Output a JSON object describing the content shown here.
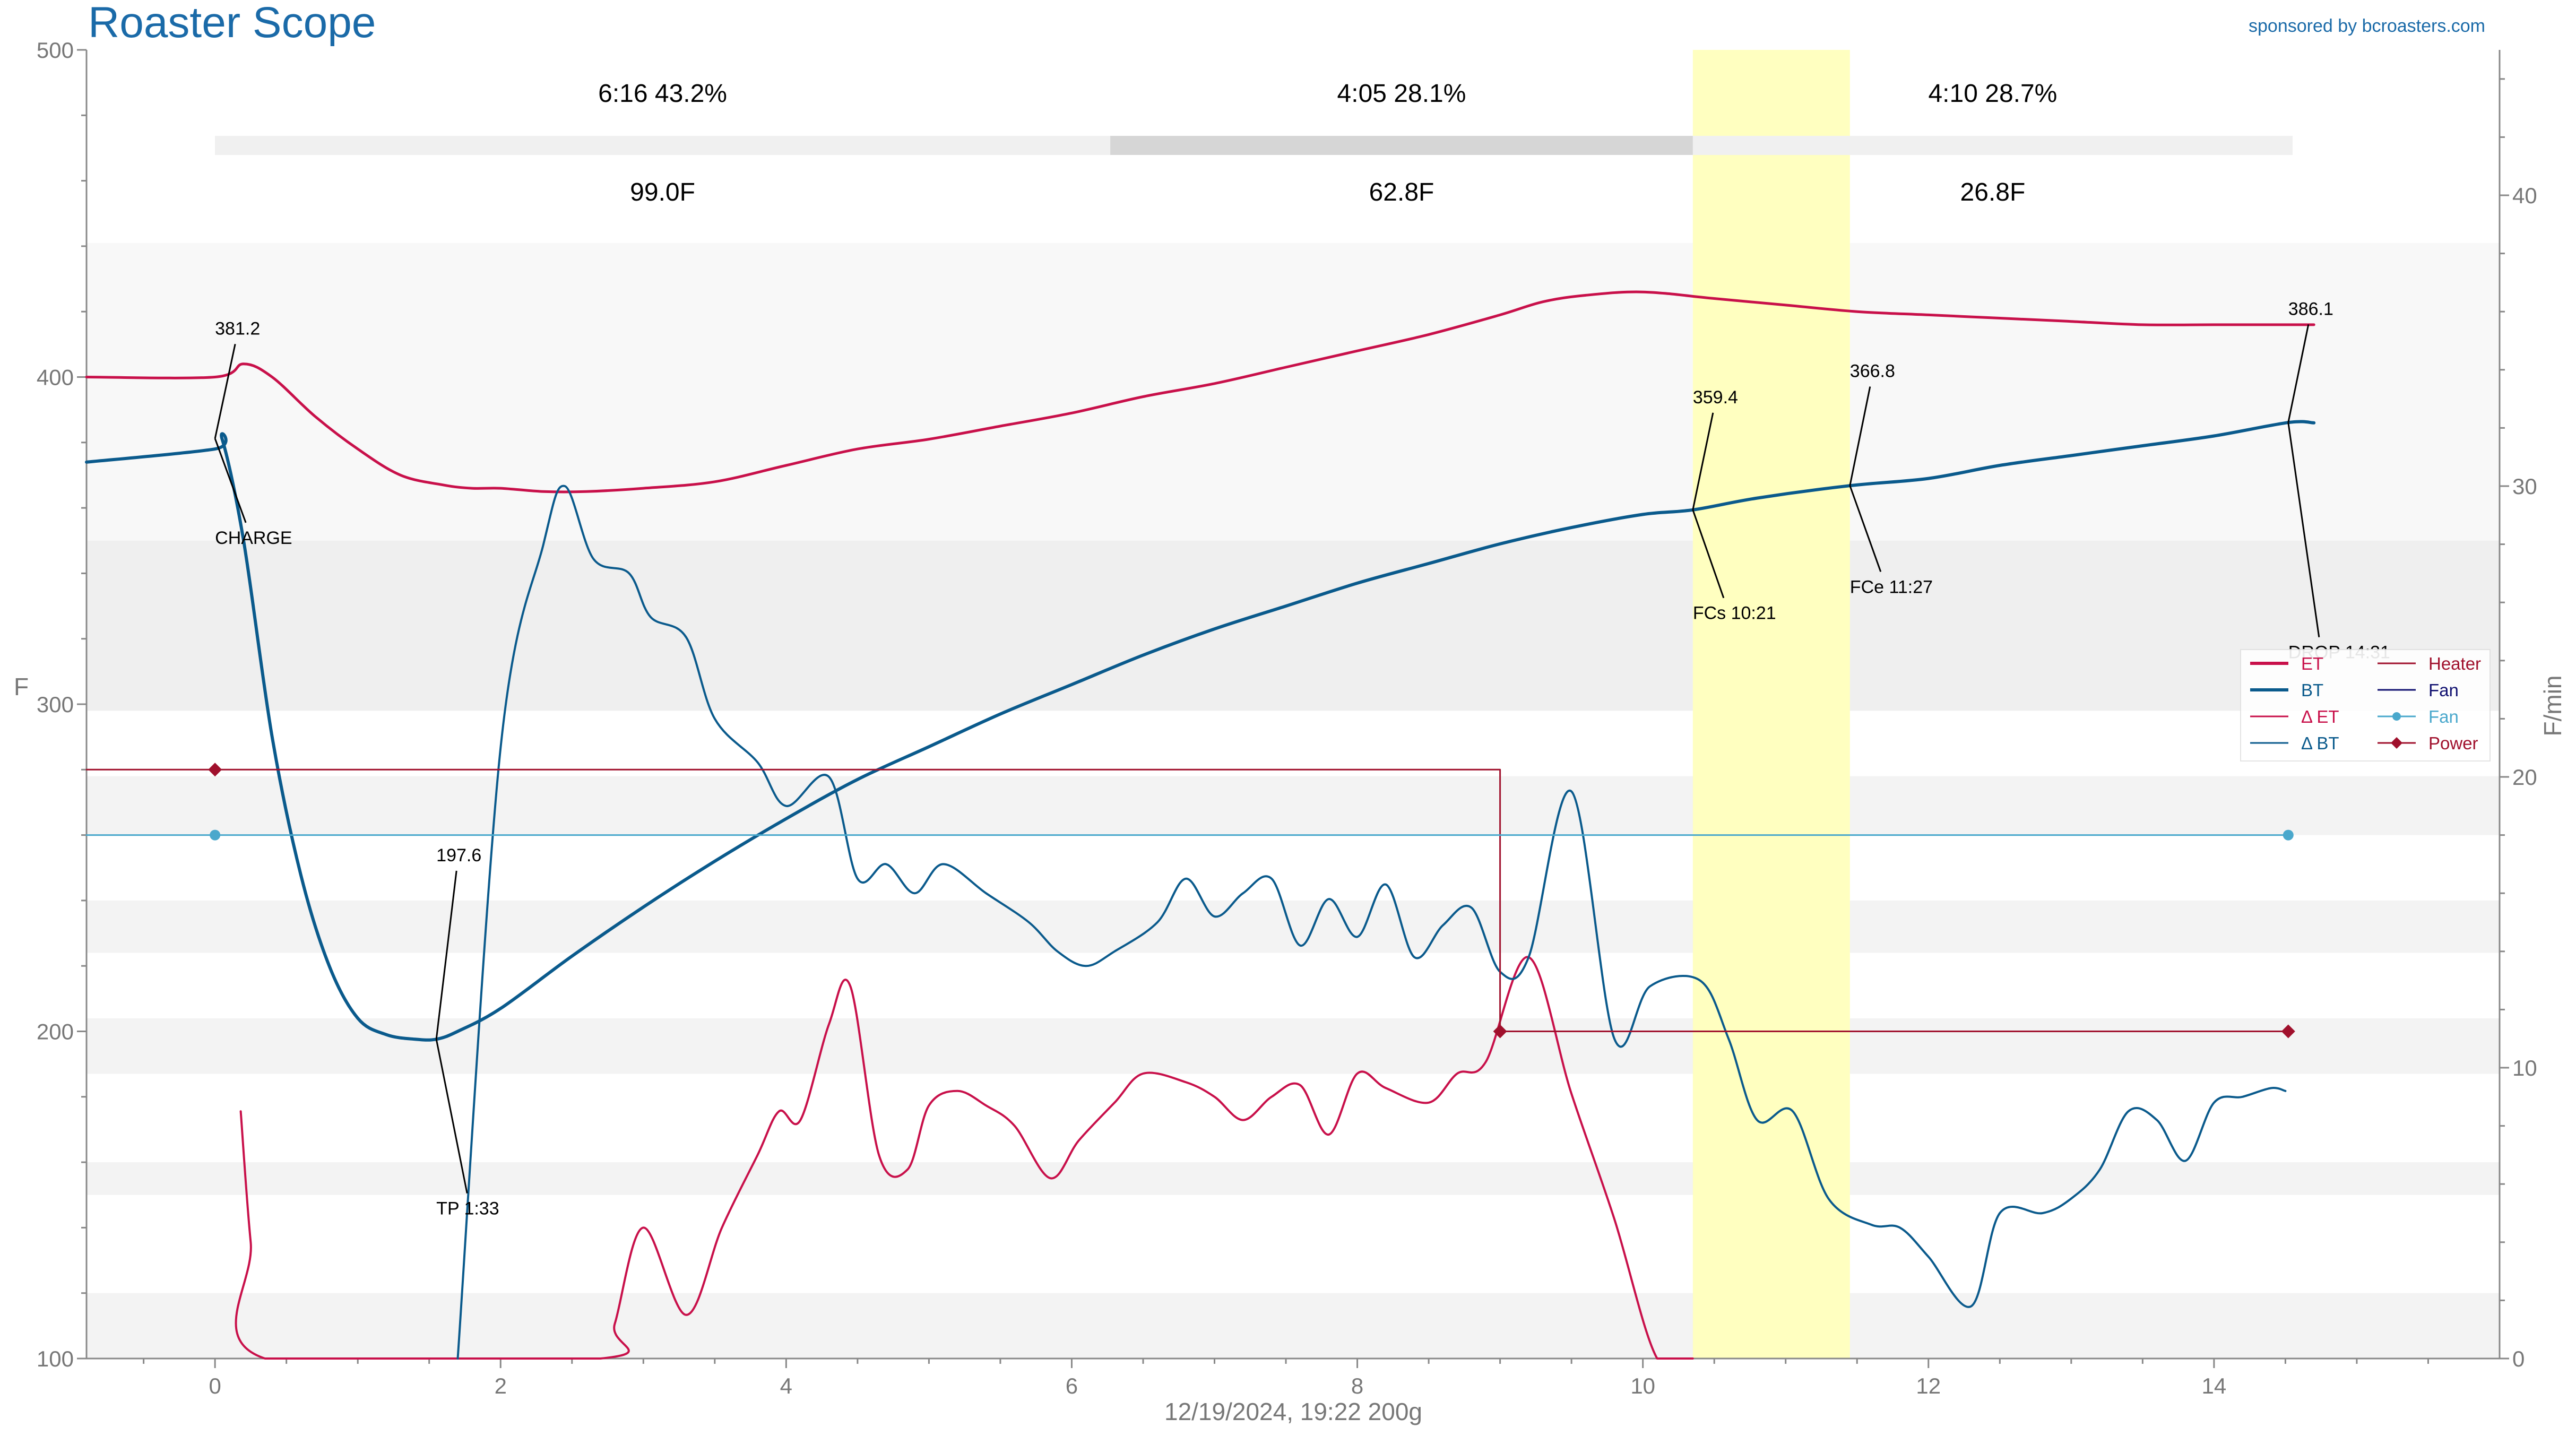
{
  "header": {
    "title": "Roaster Scope",
    "sponsor": "sponsored by bcroasters.com"
  },
  "footer": {
    "info": "12/19/2024, 19:22   200g"
  },
  "phases": [
    {
      "label": "6:16  43.2%",
      "delta": "99.0F",
      "start": 0.0,
      "end": 6.27
    },
    {
      "label": "4:05  28.1%",
      "delta": "62.8F",
      "start": 6.27,
      "end": 10.35
    },
    {
      "label": "4:10  28.7%",
      "delta": "26.8F",
      "start": 10.35,
      "end": 14.52
    }
  ],
  "chart_data": {
    "type": "line",
    "title": "Roaster Scope",
    "xlabel": "",
    "ylabel": "F",
    "y2label": "F/min",
    "xlim": [
      -0.9,
      16.0
    ],
    "ylim": [
      100,
      500
    ],
    "y2lim": [
      0,
      45
    ],
    "xticks": [
      0,
      2,
      4,
      6,
      8,
      10,
      12,
      14
    ],
    "yticks": [
      100,
      200,
      300,
      400,
      500
    ],
    "y2ticks": [
      0,
      10,
      20,
      30,
      40
    ],
    "grid": false,
    "legend_position": "right",
    "highlight_band": {
      "x": [
        10.35,
        11.45
      ],
      "color": "#ffffc0"
    },
    "legend": [
      {
        "name": "ET",
        "color": "#c8104a",
        "style": "line"
      },
      {
        "name": "BT",
        "color": "#0a5a8c",
        "style": "line"
      },
      {
        "name": "Δ ET",
        "color": "#c8104a",
        "style": "thin"
      },
      {
        "name": "Δ BT",
        "color": "#0a5a8c",
        "style": "thin"
      },
      {
        "name": "Heater",
        "color": "#a0102c",
        "style": "thin"
      },
      {
        "name": "Fan",
        "color": "#101070",
        "style": "thin"
      },
      {
        "name": "Fan",
        "color": "#4aa8cc",
        "style": "dot"
      },
      {
        "name": "Power",
        "color": "#a0102c",
        "style": "diamond"
      }
    ],
    "series": [
      {
        "name": "ET",
        "axis": "left",
        "color": "#c8104a",
        "x": [
          -0.9,
          0.0,
          0.2,
          0.4,
          0.7,
          1.0,
          1.3,
          1.6,
          1.8,
          2.0,
          2.3,
          2.6,
          3.0,
          3.5,
          4.0,
          4.5,
          5.0,
          5.5,
          6.0,
          6.5,
          7.0,
          7.5,
          8.0,
          8.5,
          9.0,
          9.3,
          9.6,
          10.0,
          10.5,
          11.0,
          11.5,
          12.0,
          12.5,
          13.0,
          13.5,
          14.0,
          14.5,
          14.7
        ],
        "y": [
          400,
          400,
          404,
          400,
          388,
          378,
          370,
          367,
          366,
          366,
          365,
          365,
          366,
          368,
          373,
          378,
          381,
          385,
          389,
          394,
          398,
          403,
          408,
          413,
          419,
          423,
          425,
          426,
          424,
          422,
          420,
          419,
          418,
          417,
          416,
          416,
          416,
          416
        ]
      },
      {
        "name": "BT",
        "axis": "left",
        "color": "#0a5a8c",
        "x": [
          -0.9,
          0.0,
          0.05,
          0.2,
          0.4,
          0.6,
          0.8,
          1.0,
          1.2,
          1.4,
          1.55,
          1.7,
          2.0,
          2.5,
          3.0,
          3.5,
          4.0,
          4.5,
          5.0,
          5.5,
          6.0,
          6.5,
          7.0,
          7.5,
          8.0,
          8.5,
          9.0,
          9.5,
          10.0,
          10.35,
          10.8,
          11.45,
          12.0,
          12.5,
          13.0,
          13.5,
          14.0,
          14.52,
          14.7
        ],
        "y": [
          374,
          378,
          381,
          350,
          290,
          248,
          220,
          204,
          199,
          197.6,
          197.6,
          200,
          207,
          223,
          238,
          252,
          265,
          277,
          287,
          297,
          306,
          315,
          323,
          330,
          337,
          343,
          349,
          354,
          358,
          359.4,
          363,
          366.8,
          369,
          373,
          376,
          379,
          382,
          386.1,
          386
        ]
      },
      {
        "name": "Δ ET",
        "axis": "right",
        "color": "#c8104a",
        "x": [
          0.18,
          0.25,
          0.35,
          2.7,
          2.8,
          3.0,
          3.3,
          3.55,
          3.8,
          3.95,
          4.1,
          4.3,
          4.45,
          4.65,
          4.85,
          5.0,
          5.2,
          5.4,
          5.6,
          5.85,
          6.05,
          6.3,
          6.5,
          6.8,
          7.0,
          7.2,
          7.4,
          7.6,
          7.8,
          8.0,
          8.2,
          8.5,
          8.7,
          8.9,
          9.2,
          9.5,
          9.8,
          10.1,
          10.35
        ],
        "y": [
          8.5,
          4,
          0,
          0,
          1.2,
          4.5,
          1.5,
          4.5,
          7,
          8.5,
          8.2,
          11.5,
          12.8,
          7,
          6.5,
          8.7,
          9.2,
          8.7,
          8,
          6.2,
          7.5,
          8.8,
          9.8,
          9.5,
          9,
          8.2,
          9,
          9.4,
          7.7,
          9.8,
          9.3,
          8.8,
          9.8,
          10.2,
          13.8,
          9.1,
          4.8,
          0,
          0
        ]
      },
      {
        "name": "Δ BT",
        "axis": "right",
        "color": "#0a5a8c",
        "x": [
          1.7,
          2.0,
          2.3,
          2.45,
          2.65,
          2.9,
          3.05,
          3.3,
          3.5,
          3.8,
          4.0,
          4.3,
          4.5,
          4.7,
          4.9,
          5.1,
          5.4,
          5.7,
          5.9,
          6.1,
          6.3,
          6.6,
          6.8,
          7.0,
          7.2,
          7.4,
          7.6,
          7.8,
          8.0,
          8.2,
          8.4,
          8.6,
          8.8,
          9.0,
          9.2,
          9.5,
          9.8,
          10.05,
          10.4,
          10.6,
          10.8,
          11.05,
          11.3,
          11.6,
          11.8,
          12.0,
          12.3,
          12.5,
          12.8,
          13.0,
          13.2,
          13.4,
          13.6,
          13.8,
          14.0,
          14.2,
          14.4,
          14.5
        ],
        "y": [
          0,
          21,
          28,
          30,
          27.5,
          27,
          25.5,
          24.8,
          22,
          20.5,
          19,
          20,
          16.5,
          17,
          16,
          17,
          16,
          15,
          14,
          13.5,
          14,
          15,
          16.5,
          15.2,
          16,
          16.5,
          14.2,
          15.8,
          14.5,
          16.3,
          13.8,
          14.9,
          15.5,
          13.3,
          13.8,
          19.5,
          11,
          12.8,
          13,
          11,
          8.2,
          8.5,
          5.5,
          4.6,
          4.5,
          3.5,
          1.8,
          5,
          5,
          5.5,
          6.5,
          8.5,
          8.2,
          6.8,
          8.8,
          9,
          9.3,
          9.2
        ]
      },
      {
        "name": "Power",
        "axis": "left",
        "color": "#a0102c",
        "x": [
          -0.9,
          0.0,
          9.0,
          9.0,
          14.52
        ],
        "y": [
          280,
          280,
          280,
          200,
          200
        ]
      },
      {
        "name": "Fan",
        "axis": "left",
        "color": "#4aa8cc",
        "x": [
          -0.9,
          0.0,
          14.52
        ],
        "y": [
          260,
          260,
          260
        ]
      }
    ],
    "markers": [
      {
        "series": "Power",
        "x": 0.0,
        "y": 280
      },
      {
        "series": "Power",
        "x": 9.0,
        "y": 200
      },
      {
        "series": "Power",
        "x": 14.52,
        "y": 200
      },
      {
        "series": "Fan",
        "x": 0.0,
        "y": 260
      },
      {
        "series": "Fan",
        "x": 14.52,
        "y": 260
      }
    ],
    "annotations": [
      {
        "text": "381.2",
        "x": 0.0,
        "y": 381.2,
        "tx": 0.0,
        "ty": 413
      },
      {
        "text": "CHARGE",
        "x": 0.0,
        "y": 381.2,
        "tx": 0.0,
        "ty": 349
      },
      {
        "text": "197.6",
        "x": 1.55,
        "y": 197.6,
        "tx": 1.55,
        "ty": 252
      },
      {
        "text": "TP 1:33",
        "x": 1.55,
        "y": 197.6,
        "tx": 1.55,
        "ty": 144
      },
      {
        "text": "359.4",
        "x": 10.35,
        "y": 359.4,
        "tx": 10.35,
        "ty": 392
      },
      {
        "text": "FCs 10:21",
        "x": 10.35,
        "y": 359.4,
        "tx": 10.35,
        "ty": 326
      },
      {
        "text": "366.8",
        "x": 11.45,
        "y": 366.8,
        "tx": 11.45,
        "ty": 400
      },
      {
        "text": "FCe 11:27",
        "x": 11.45,
        "y": 366.8,
        "tx": 11.45,
        "ty": 334
      },
      {
        "text": "386.1",
        "x": 14.52,
        "y": 386.1,
        "tx": 14.52,
        "ty": 419
      },
      {
        "text": "DROP 14:31",
        "x": 14.52,
        "y": 386.1,
        "tx": 14.52,
        "ty": 314
      }
    ]
  }
}
